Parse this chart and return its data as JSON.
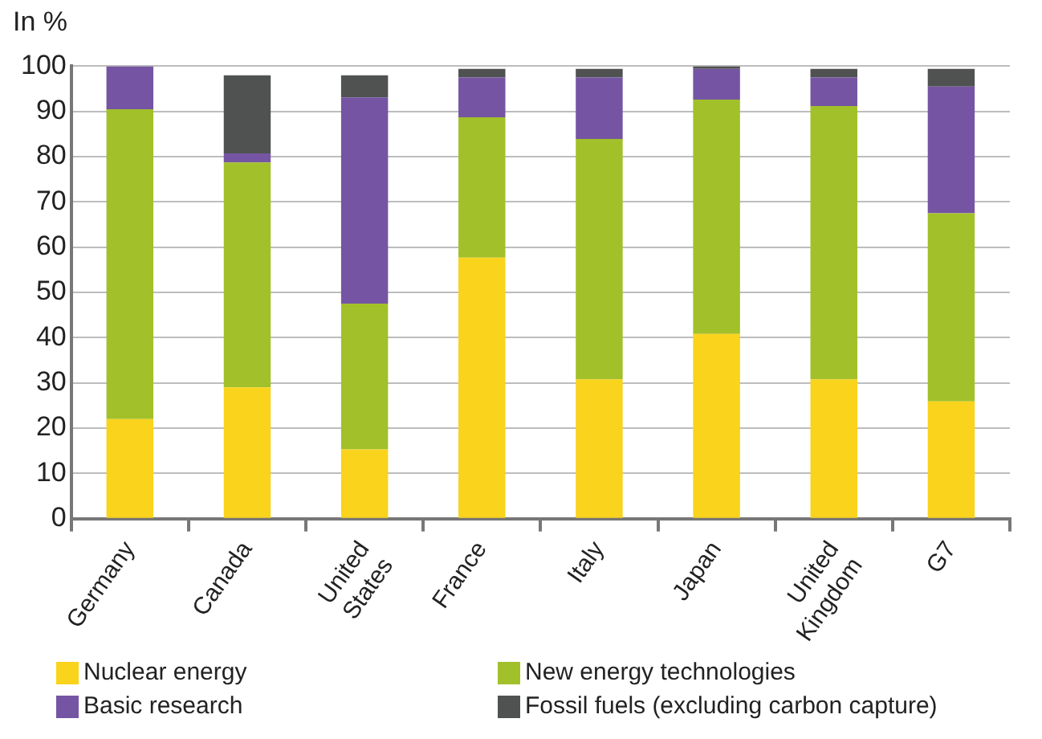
{
  "chart_data": {
    "type": "bar",
    "ylabel": "In %",
    "stacked": true,
    "categories": [
      "Germany",
      "Canada",
      "United States",
      "France",
      "Italy",
      "Japan",
      "United Kingdom",
      "G7"
    ],
    "series": [
      {
        "name": "Nuclear energy",
        "color": "#f9d31c",
        "values": [
          22,
          29,
          15.3,
          57.7,
          30.8,
          40.8,
          30.8,
          25.9
        ]
      },
      {
        "name": "New energy technologies",
        "color": "#a2c02a",
        "values": [
          68.5,
          49.7,
          32.2,
          31,
          53.1,
          51.8,
          60.4,
          41.6
        ]
      },
      {
        "name": "Basic research",
        "color": "#7555a3",
        "values": [
          9.5,
          2,
          45.6,
          8.8,
          13.6,
          6.8,
          6.3,
          28
        ]
      },
      {
        "name": "Fossil fuels (excluding carbon capture)",
        "color": "#4f5251",
        "values": [
          0,
          17.3,
          4.9,
          1.9,
          1.9,
          0.6,
          1.9,
          3.9
        ]
      }
    ],
    "ylim": [
      0,
      100
    ],
    "yticks": [
      0,
      10,
      20,
      30,
      40,
      50,
      60,
      70,
      80,
      90,
      100
    ],
    "grid": "y",
    "legend": "bottom"
  }
}
